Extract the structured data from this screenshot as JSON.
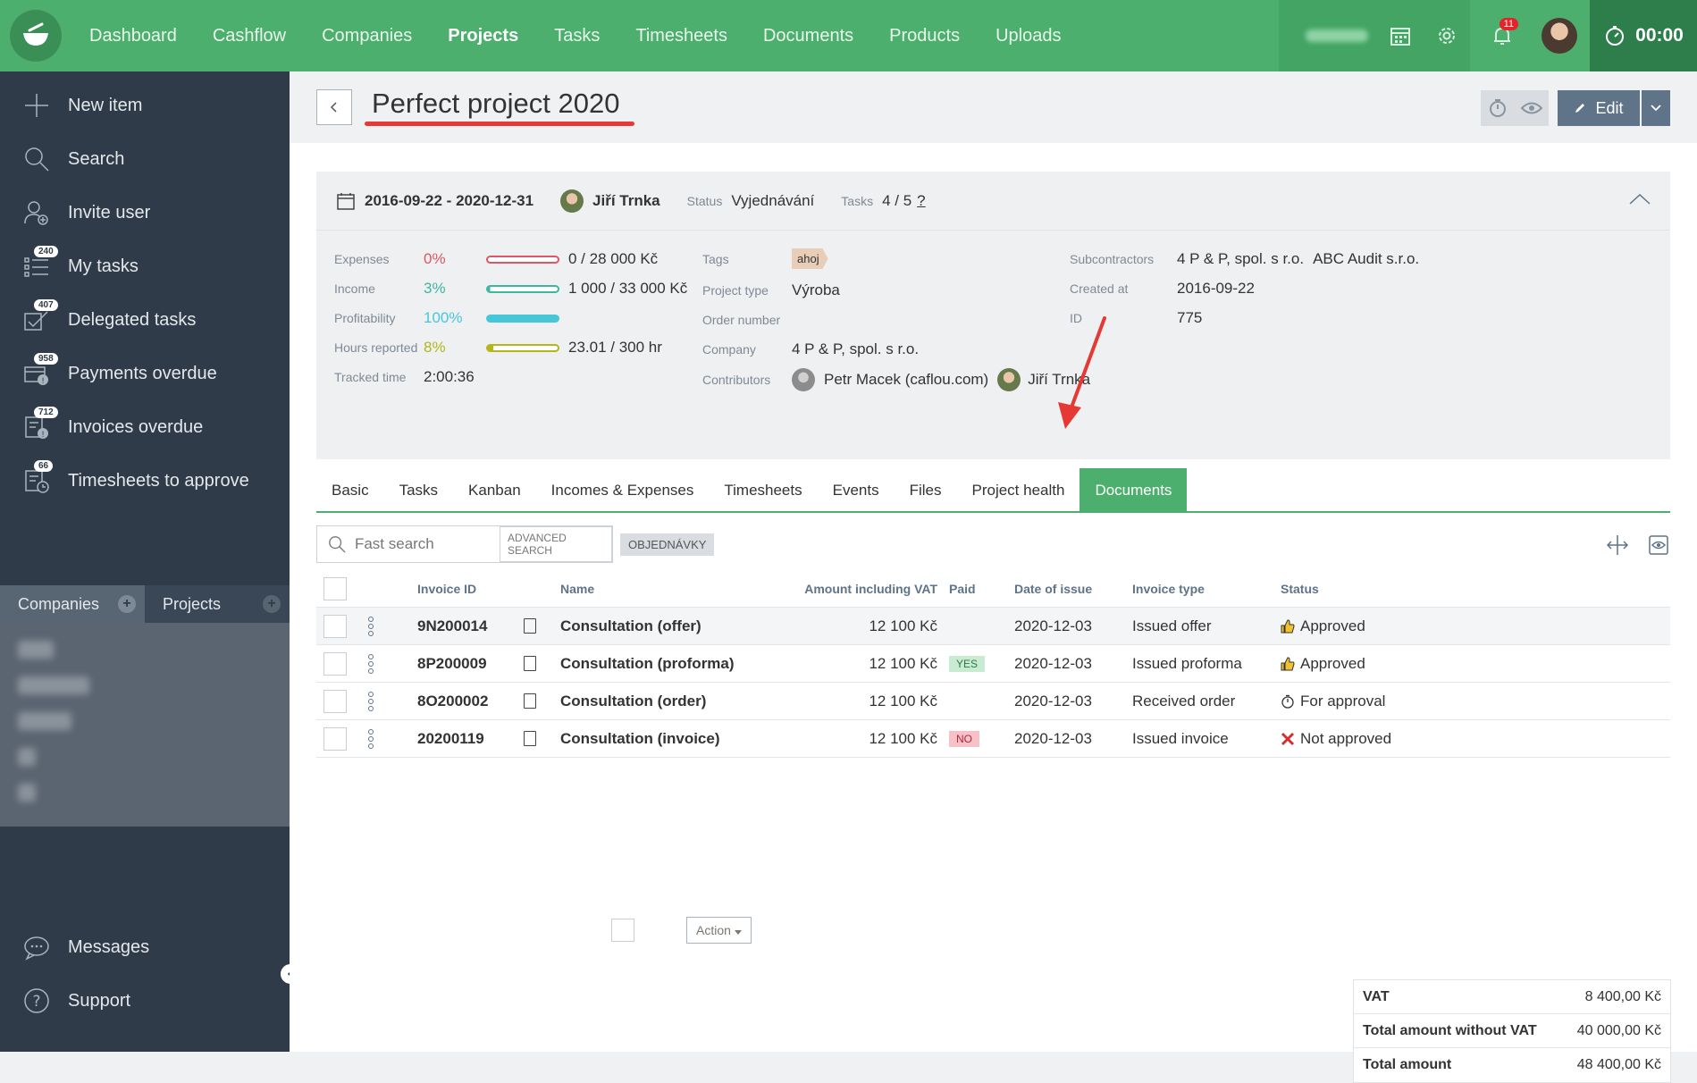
{
  "topnav": {
    "items": [
      "Dashboard",
      "Cashflow",
      "Companies",
      "Projects",
      "Tasks",
      "Timesheets",
      "Documents",
      "Products",
      "Uploads"
    ],
    "active": "Projects",
    "notifications_count": "11",
    "timer": "00:00"
  },
  "sidebar": {
    "items": [
      {
        "label": "New item",
        "badge": ""
      },
      {
        "label": "Search",
        "badge": ""
      },
      {
        "label": "Invite user",
        "badge": ""
      },
      {
        "label": "My tasks",
        "badge": "240"
      },
      {
        "label": "Delegated tasks",
        "badge": "407"
      },
      {
        "label": "Payments overdue",
        "badge": "958"
      },
      {
        "label": "Invoices overdue",
        "badge": "712"
      },
      {
        "label": "Timesheets to approve",
        "badge": "66"
      }
    ],
    "tab_companies": "Companies",
    "tab_projects": "Projects",
    "messages": "Messages",
    "support": "Support"
  },
  "header": {
    "title": "Perfect project 2020",
    "edit_label": "Edit"
  },
  "summary": {
    "date_range": "2016-09-22 - 2020-12-31",
    "owner": "Jiří Trnka",
    "status_label": "Status",
    "status_value": "Vyjednávání",
    "tasks_label": "Tasks",
    "tasks_value": "4 / 5",
    "tasks_q": "?",
    "expenses_label": "Expenses",
    "expenses_pct": "0%",
    "expenses_val": "0 / 28 000 Kč",
    "expenses_progress": 0,
    "income_label": "Income",
    "income_pct": "3%",
    "income_val": "1 000 / 33 000 Kč",
    "income_progress": 3,
    "profit_label": "Profitability",
    "profit_pct": "100%",
    "profit_progress": 100,
    "hours_label": "Hours reported",
    "hours_pct": "8%",
    "hours_val": "23.01 / 300 hr",
    "hours_progress": 8,
    "tracked_label": "Tracked time",
    "tracked_val": "2:00:36",
    "tags_label": "Tags",
    "tag": "ahoj",
    "ptype_label": "Project type",
    "ptype_val": "Výroba",
    "order_label": "Order number",
    "company_label": "Company",
    "company_val": "4 P & P, spol. s r.o.",
    "contrib_label": "Contributors",
    "contrib_1": "Petr Macek (caflou.com)",
    "contrib_2": "Jiří Trnka",
    "subc_label": "Subcontractors",
    "subc_1": "4 P & P, spol. s r.o.",
    "subc_2": "ABC Audit s.r.o.",
    "created_label": "Created at",
    "created_val": "2016-09-22",
    "id_label": "ID",
    "id_val": "775"
  },
  "tabs": [
    "Basic",
    "Tasks",
    "Kanban",
    "Incomes & Expenses",
    "Timesheets",
    "Events",
    "Files",
    "Project health",
    "Documents"
  ],
  "active_tab": "Documents",
  "search": {
    "placeholder": "Fast search",
    "advanced": "ADVANCED SEARCH",
    "filter_tag": "OBJEDNÁVKY"
  },
  "table": {
    "headers": {
      "invoice_id": "Invoice ID",
      "name": "Name",
      "amount": "Amount including VAT",
      "paid": "Paid",
      "date": "Date of issue",
      "type": "Invoice type",
      "status": "Status"
    },
    "rows": [
      {
        "id": "9N200014",
        "name": "Consultation (offer)",
        "amount": "12 100 Kč",
        "paid": "",
        "date": "2020-12-03",
        "type": "Issued offer",
        "status": "Approved"
      },
      {
        "id": "8P200009",
        "name": "Consultation (proforma)",
        "amount": "12 100 Kč",
        "paid": "YES",
        "date": "2020-12-03",
        "type": "Issued proforma",
        "status": "Approved"
      },
      {
        "id": "8O200002",
        "name": "Consultation (order)",
        "amount": "12 100 Kč",
        "paid": "",
        "date": "2020-12-03",
        "type": "Received order",
        "status": "For approval"
      },
      {
        "id": "20200119",
        "name": "Consultation (invoice)",
        "amount": "12 100 Kč",
        "paid": "NO",
        "date": "2020-12-03",
        "type": "Issued invoice",
        "status": "Not approved"
      }
    ],
    "action_label": "Action"
  },
  "totals": {
    "vat_label": "VAT",
    "vat_val": "8 400,00 Kč",
    "novat_label": "Total amount without VAT",
    "novat_val": "40 000,00 Kč",
    "total_label": "Total amount",
    "total_val": "48 400,00 Kč"
  },
  "colors": {
    "brand": "#4caf6d",
    "sidebar": "#2f3b48",
    "expenses": "#e05565",
    "income": "#3fb6a0",
    "profit": "#46c7d8",
    "hours": "#b5b51c",
    "title_underline": "#e53935"
  }
}
